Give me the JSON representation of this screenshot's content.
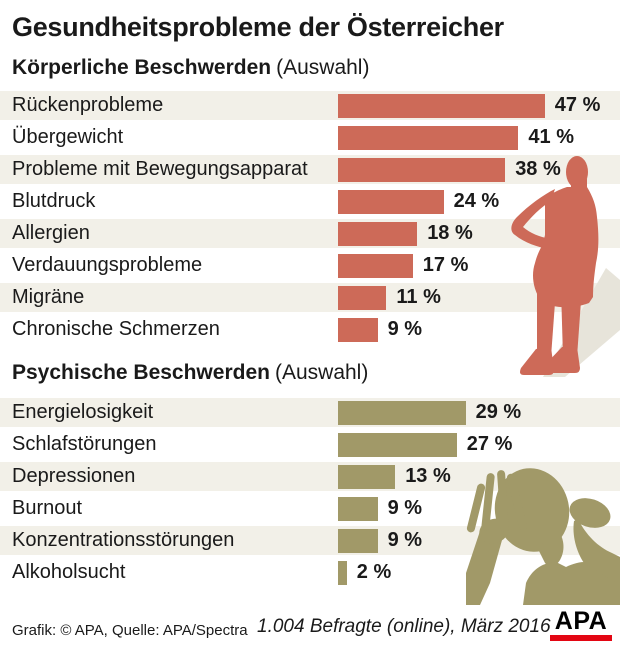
{
  "page": {
    "title": "Gesundheitsprobleme der Österreicher",
    "text_color": "#1a1a1a",
    "background": "#ffffff"
  },
  "chart_data": [
    {
      "type": "bar",
      "orientation": "horizontal",
      "section_title": "Körperliche Beschwerden",
      "section_title_suffix": "(Auswahl)",
      "categories": [
        "Rückenprobleme",
        "Übergewicht",
        "Probleme mit Bewegungsapparat",
        "Blutdruck",
        "Allergien",
        "Verdauungsprobleme",
        "Migräne",
        "Chronische Schmerzen"
      ],
      "values": [
        47,
        41,
        38,
        24,
        18,
        17,
        11,
        9
      ],
      "value_labels": [
        "47 %",
        "41 %",
        "38 %",
        "24 %",
        "18 %",
        "17 %",
        "11 %",
        "9 %"
      ],
      "unit": "%",
      "xlim": [
        0,
        50
      ],
      "grid": false,
      "legend": "none",
      "bar_color": "#cd6a58",
      "row_stripe_color": "#f2f0e8"
    },
    {
      "type": "bar",
      "orientation": "horizontal",
      "section_title": "Psychische Beschwerden",
      "section_title_suffix": "(Auswahl)",
      "categories": [
        "Energielosigkeit",
        "Schlafstörungen",
        "Depressionen",
        "Burnout",
        "Konzentrationsstörungen",
        "Alkoholsucht"
      ],
      "values": [
        29,
        27,
        13,
        9,
        9,
        2
      ],
      "value_labels": [
        "29 %",
        "27 %",
        "13 %",
        "9 %",
        "9 %",
        "2 %"
      ],
      "unit": "%",
      "xlim": [
        0,
        50
      ],
      "grid": false,
      "legend": "none",
      "bar_color": "#a19968",
      "row_stripe_color": "#f2f0e8"
    }
  ],
  "figures": [
    {
      "name": "back-pain-person-silhouette",
      "color": "#cd6a58",
      "shadow_color": "#e7e4da"
    },
    {
      "name": "head-in-hands-person-silhouette",
      "color": "#a19968"
    }
  ],
  "footer": {
    "credit": "Grafik: © APA, Quelle: APA/Spectra",
    "survey_note": "1.004 Befragte (online), März 2016",
    "logo_text": "APA",
    "logo_bar_color": "#e30613"
  }
}
